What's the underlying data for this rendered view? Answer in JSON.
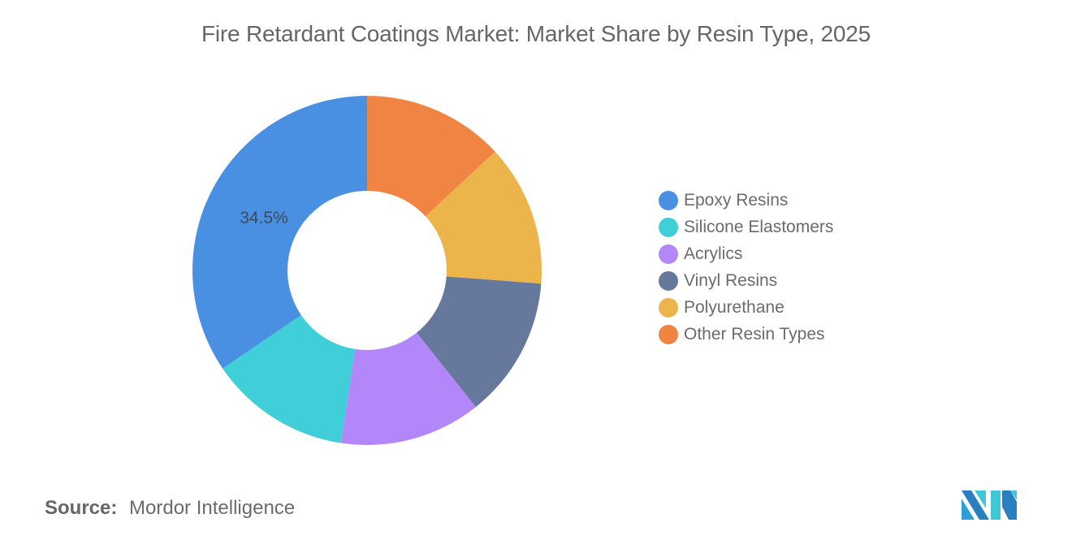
{
  "title": "Fire Retardant Coatings Market: Market Share by Resin Type, 2025",
  "chart_data": {
    "type": "pie",
    "subtype": "donut",
    "title": "Fire Retardant Coatings Market: Market Share by Resin Type, 2025",
    "categories": [
      "Epoxy Resins",
      "Silicone Elastomers",
      "Acrylics",
      "Vinyl Resins",
      "Polyurethane",
      "Other Resin Types"
    ],
    "values": [
      34.5,
      13.1,
      13.1,
      13.1,
      13.1,
      13.1
    ],
    "colors": [
      "#4a90e2",
      "#40cfd8",
      "#b386f9",
      "#66799c",
      "#ebb54b",
      "#f08443"
    ],
    "data_labels": [
      {
        "category": "Epoxy Resins",
        "text": "34.5%"
      }
    ],
    "legend_position": "right",
    "direction": "counter-clockwise from top"
  },
  "legend": {
    "items": [
      {
        "label": "Epoxy Resins",
        "color": "#4a90e2"
      },
      {
        "label": "Silicone Elastomers",
        "color": "#40cfd8"
      },
      {
        "label": "Acrylics",
        "color": "#b386f9"
      },
      {
        "label": "Vinyl Resins",
        "color": "#66799c"
      },
      {
        "label": "Polyurethane",
        "color": "#ebb54b"
      },
      {
        "label": "Other Resin Types",
        "color": "#f08443"
      }
    ]
  },
  "footer": {
    "source_key": "Source:",
    "source_value": "Mordor Intelligence"
  },
  "logo": {
    "icon": "mordor-intelligence-logo-icon"
  }
}
